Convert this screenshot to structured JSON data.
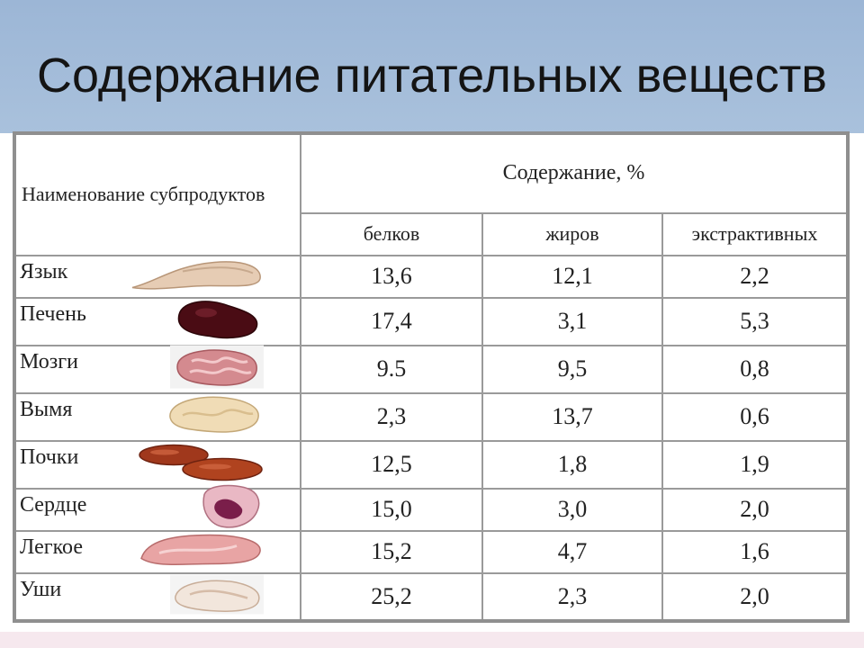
{
  "slide": {
    "title": "Содержание питательных веществ"
  },
  "table": {
    "header_name": "Наименование субпродуктов",
    "header_content": "Содержание, %",
    "header_cols": [
      "белков",
      "жиров",
      "экстрактивных"
    ],
    "rows": [
      {
        "name": "Язык",
        "icon": "tongue-icon",
        "values": [
          "13,6",
          "12,1",
          "2,2"
        ]
      },
      {
        "name": "Печень",
        "icon": "liver-icon",
        "values": [
          "17,4",
          "3,1",
          "5,3"
        ]
      },
      {
        "name": "Мозги",
        "icon": "brains-icon",
        "values": [
          "9.5",
          "9,5",
          "0,8"
        ]
      },
      {
        "name": "Вымя",
        "icon": "udder-icon",
        "values": [
          "2,3",
          "13,7",
          "0,6"
        ]
      },
      {
        "name": "Почки",
        "icon": "kidneys-icon",
        "values": [
          "12,5",
          "1,8",
          "1,9"
        ]
      },
      {
        "name": "Сердце",
        "icon": "heart-icon",
        "values": [
          "15,0",
          "3,0",
          "2,0"
        ]
      },
      {
        "name": "Легкое",
        "icon": "lung-icon",
        "values": [
          "15,2",
          "4,7",
          "1,6"
        ]
      },
      {
        "name": "Уши",
        "icon": "ears-icon",
        "values": [
          "25,2",
          "2,3",
          "2,0"
        ]
      }
    ]
  },
  "colors": {
    "title_band": "#a5bedb",
    "grid": "#9a9a9a",
    "bottom_band": "#f6e8ee"
  }
}
